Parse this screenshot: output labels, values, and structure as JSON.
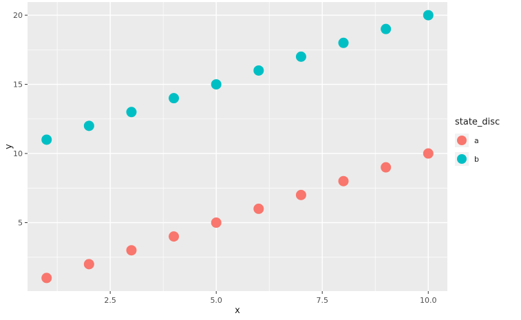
{
  "figure": {
    "background": "#FFFFFF"
  },
  "chart_data": {
    "type": "scatter",
    "title": "",
    "xlabel": "x",
    "ylabel": "y",
    "series": [
      {
        "name": "a",
        "color": "#F8766D",
        "x": [
          1,
          2,
          3,
          4,
          5,
          6,
          7,
          8,
          9,
          10
        ],
        "y": [
          1,
          2,
          3,
          4,
          5,
          6,
          7,
          8,
          9,
          10
        ]
      },
      {
        "name": "b",
        "color": "#00BFC4",
        "x": [
          1,
          2,
          3,
          4,
          5,
          6,
          7,
          8,
          9,
          10
        ],
        "y": [
          11,
          12,
          13,
          14,
          15,
          16,
          17,
          18,
          19,
          20
        ]
      }
    ],
    "xlim": [
      0.55,
      10.45
    ],
    "ylim": [
      0.05,
      20.95
    ],
    "x_ticks": {
      "values": [
        2.5,
        5.0,
        7.5,
        10.0
      ],
      "labels": [
        "2.5",
        "5.0",
        "7.5",
        "10.0"
      ]
    },
    "y_ticks": {
      "values": [
        5,
        10,
        15,
        20
      ],
      "labels": [
        "5",
        "10",
        "15",
        "20"
      ]
    },
    "grid": {
      "major": true,
      "minor": true,
      "color": "#FFFFFF"
    },
    "panel_background": "#EBEBEB",
    "tick_mark_color": "#333333",
    "tick_label_color": "#4D4D4D",
    "axis_title_color": "#1A1A1A",
    "point_radius": 7.5,
    "legend": {
      "title": "state_disc",
      "position": "right",
      "key_background": "#F2F2F2",
      "entries": [
        {
          "label": "a",
          "color": "#F8766D"
        },
        {
          "label": "b",
          "color": "#00BFC4"
        }
      ]
    }
  }
}
